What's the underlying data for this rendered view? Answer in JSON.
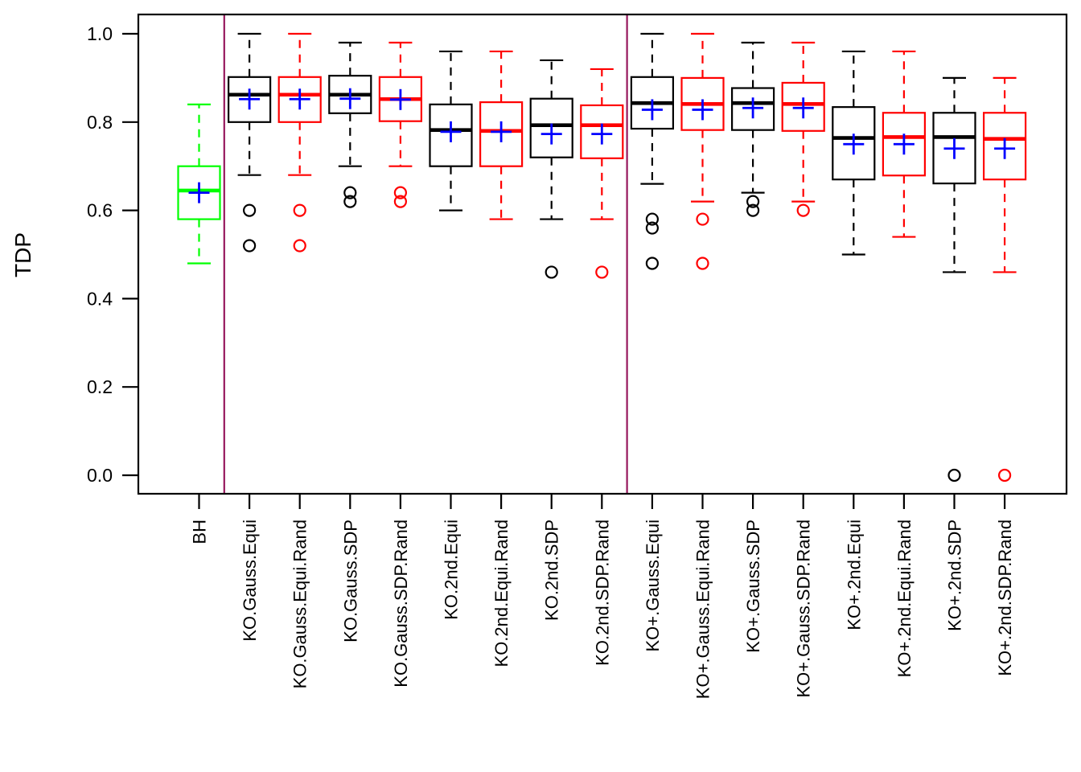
{
  "figure": {
    "background": "#FFFFFF",
    "description": "Boxplot of TDP for 17 multiple-testing / knockoff methods"
  },
  "chart_data": {
    "type": "boxplot",
    "title": "",
    "xlabel": "",
    "ylabel": "TDP",
    "ylim": [
      0.0,
      1.0
    ],
    "grid": false,
    "yticks": [
      0.0,
      0.2,
      0.4,
      0.6,
      0.8,
      1.0
    ],
    "ytick_labels": [
      "0.0",
      "0.2",
      "0.4",
      "0.6",
      "0.8",
      "1.0"
    ],
    "colors": {
      "bh_box": "#00FF00",
      "plain_box": "#000000",
      "rand_box": "#FF0000",
      "mean_marker": "#0000FF",
      "separator_line": "#96175C",
      "frame": "#000000"
    },
    "separators_after_index": [
      0,
      8
    ],
    "boxes": [
      {
        "label": "BH",
        "color": "#00FF00",
        "whisker_low": 0.48,
        "q1": 0.58,
        "median": 0.645,
        "q3": 0.7,
        "whisker_high": 0.84,
        "mean": 0.64,
        "outliers": []
      },
      {
        "label": "KO.Gauss.Equi",
        "color": "#000000",
        "whisker_low": 0.68,
        "q1": 0.8,
        "median": 0.862,
        "q3": 0.902,
        "whisker_high": 1.0,
        "mean": 0.852,
        "outliers": [
          0.6,
          0.52
        ]
      },
      {
        "label": "KO.Gauss.Equi.Rand",
        "color": "#FF0000",
        "whisker_low": 0.68,
        "q1": 0.8,
        "median": 0.862,
        "q3": 0.902,
        "whisker_high": 1.0,
        "mean": 0.852,
        "outliers": [
          0.6,
          0.52
        ]
      },
      {
        "label": "KO.Gauss.SDP",
        "color": "#000000",
        "whisker_low": 0.7,
        "q1": 0.82,
        "median": 0.862,
        "q3": 0.905,
        "whisker_high": 0.98,
        "mean": 0.853,
        "outliers": [
          0.64,
          0.62
        ]
      },
      {
        "label": "KO.Gauss.SDP.Rand",
        "color": "#FF0000",
        "whisker_low": 0.7,
        "q1": 0.802,
        "median": 0.852,
        "q3": 0.902,
        "whisker_high": 0.98,
        "mean": 0.851,
        "outliers": [
          0.64,
          0.62
        ]
      },
      {
        "label": "KO.2nd.Equi",
        "color": "#000000",
        "whisker_low": 0.6,
        "q1": 0.7,
        "median": 0.782,
        "q3": 0.84,
        "whisker_high": 0.96,
        "mean": 0.778,
        "outliers": []
      },
      {
        "label": "KO.2nd.Equi.Rand",
        "color": "#FF0000",
        "whisker_low": 0.58,
        "q1": 0.7,
        "median": 0.78,
        "q3": 0.845,
        "whisker_high": 0.96,
        "mean": 0.778,
        "outliers": []
      },
      {
        "label": "KO.2nd.SDP",
        "color": "#000000",
        "whisker_low": 0.58,
        "q1": 0.72,
        "median": 0.793,
        "q3": 0.853,
        "whisker_high": 0.94,
        "mean": 0.773,
        "outliers": [
          0.46
        ]
      },
      {
        "label": "KO.2nd.SDP.Rand",
        "color": "#FF0000",
        "whisker_low": 0.58,
        "q1": 0.718,
        "median": 0.793,
        "q3": 0.838,
        "whisker_high": 0.92,
        "mean": 0.773,
        "outliers": [
          0.46
        ]
      },
      {
        "label": "KO+.Gauss.Equi",
        "color": "#000000",
        "whisker_low": 0.66,
        "q1": 0.785,
        "median": 0.843,
        "q3": 0.902,
        "whisker_high": 1.0,
        "mean": 0.828,
        "outliers": [
          0.58,
          0.56,
          0.48
        ]
      },
      {
        "label": "KO+.Gauss.Equi.Rand",
        "color": "#FF0000",
        "whisker_low": 0.62,
        "q1": 0.782,
        "median": 0.841,
        "q3": 0.9,
        "whisker_high": 1.0,
        "mean": 0.828,
        "outliers": [
          0.58,
          0.48
        ]
      },
      {
        "label": "KO+.Gauss.SDP",
        "color": "#000000",
        "whisker_low": 0.64,
        "q1": 0.782,
        "median": 0.843,
        "q3": 0.877,
        "whisker_high": 0.98,
        "mean": 0.832,
        "outliers": [
          0.62,
          0.6
        ]
      },
      {
        "label": "KO+.Gauss.SDP.Rand",
        "color": "#FF0000",
        "whisker_low": 0.62,
        "q1": 0.78,
        "median": 0.841,
        "q3": 0.889,
        "whisker_high": 0.98,
        "mean": 0.832,
        "outliers": [
          0.6
        ]
      },
      {
        "label": "KO+.2nd.Equi",
        "color": "#000000",
        "whisker_low": 0.5,
        "q1": 0.67,
        "median": 0.764,
        "q3": 0.834,
        "whisker_high": 0.96,
        "mean": 0.75,
        "outliers": []
      },
      {
        "label": "KO+.2nd.Equi.Rand",
        "color": "#FF0000",
        "whisker_low": 0.54,
        "q1": 0.679,
        "median": 0.766,
        "q3": 0.821,
        "whisker_high": 0.96,
        "mean": 0.75,
        "outliers": []
      },
      {
        "label": "KO+.2nd.SDP",
        "color": "#000000",
        "whisker_low": 0.46,
        "q1": 0.661,
        "median": 0.766,
        "q3": 0.821,
        "whisker_high": 0.9,
        "mean": 0.74,
        "outliers": [
          0.0
        ]
      },
      {
        "label": "KO+.2nd.SDP.Rand",
        "color": "#FF0000",
        "whisker_low": 0.46,
        "q1": 0.67,
        "median": 0.762,
        "q3": 0.821,
        "whisker_high": 0.9,
        "mean": 0.74,
        "outliers": [
          0.0
        ]
      }
    ]
  }
}
